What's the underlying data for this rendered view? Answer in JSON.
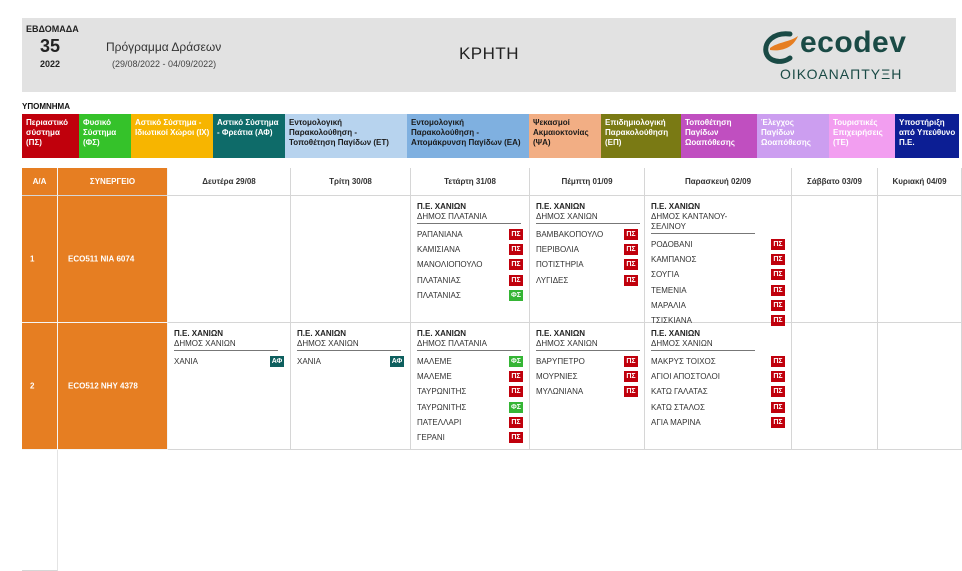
{
  "header": {
    "week_label": "ΕΒΔΟΜΑΔΑ",
    "week_number": "35",
    "year": "2022",
    "program_title": "Πρόγραμμα Δράσεων",
    "program_dates": "(29/08/2022 - 04/09/2022)",
    "region": "ΚΡΗΤΗ",
    "logo_word": "ecodev",
    "logo_sub": "ΟΙΚΟΑΝΑΠΤΥΞΗ"
  },
  "legend": {
    "title": "ΥΠΟΜΝΗΜΑ",
    "items": [
      {
        "label": "Περιαστικό σύστημα (ΠΣ)",
        "color": "#c0000c"
      },
      {
        "label": "Φυσικό Σύστημα (ΦΣ)",
        "color": "#35c22a"
      },
      {
        "label": "Αστικό Σύστημα - Ιδιωτικοί Χώροι (ΙΧ)",
        "color": "#f7b500"
      },
      {
        "label": "Αστικό Σύστημα - Φρεάτια (ΑΦ)",
        "color": "#0e6b69"
      },
      {
        "label": "Εντομολογική Παρακολούθηση - Τοποθέτηση Παγίδων (ΕΤ)",
        "color": "#b7d3ee"
      },
      {
        "label": "Εντομολογική Παρακολούθηση - Απομάκρυνση Παγίδων (ΕΑ)",
        "color": "#7fb0e0"
      },
      {
        "label": "Ψεκασμοί Ακμαιοκτονίας (ΨΑ)",
        "color": "#f2ae84"
      },
      {
        "label": "Επιδημιολογική Παρακολούθηση (ΕΠ)",
        "color": "#7a7a14"
      },
      {
        "label": "Τοποθέτηση Παγίδων Ωοαπόθεσης",
        "color": "#c04fc0"
      },
      {
        "label": "Έλεγχος Παγίδων Ωοαπόθεσης",
        "color": "#cc9ef0"
      },
      {
        "label": "Τουριστικές Επιχειρήσεις (ΤΕ)",
        "color": "#f29ef0"
      },
      {
        "label": "Υποστήριξη από Υπεύθυνο Π.Ε.",
        "color": "#0c1e94"
      }
    ]
  },
  "table": {
    "col_aa": "Α/Α",
    "col_team": "ΣΥΝΕΡΓΕΙΟ",
    "days": [
      "Δευτέρα 29/08",
      "Τρίτη 30/08",
      "Τετάρτη 31/08",
      "Πέμπτη 01/09",
      "Παρασκευή 02/09",
      "Σάββατο 03/09",
      "Κυριακή 04/09"
    ],
    "teams": [
      {
        "num": "1",
        "name": "ECO511  ΝΙΑ 6074",
        "blocks": [
          null,
          null,
          {
            "pe": "Π.Ε. ΧΑΝΙΩΝ",
            "dimos": "ΔΗΜΟΣ ΠΛΑΤΑΝΙΑ",
            "rows": [
              {
                "loc": "ΡΑΠΑΝΙΑΝΑ",
                "code": "ΠΣ",
                "type": "ps"
              },
              {
                "loc": "ΚΑΜΙΣΙΑΝΑ",
                "code": "ΠΣ",
                "type": "ps"
              },
              {
                "loc": "ΜΑΝΟΛΙΟΠΟΥΛΟ",
                "code": "ΠΣ",
                "type": "ps"
              },
              {
                "loc": "ΠΛΑΤΑΝΙΑΣ",
                "code": "ΠΣ",
                "type": "ps"
              },
              {
                "loc": "ΠΛΑΤΑΝΙΑΣ",
                "code": "ΦΣ",
                "type": "fs"
              }
            ]
          },
          {
            "pe": "Π.Ε. ΧΑΝΙΩΝ",
            "dimos": "ΔΗΜΟΣ ΧΑΝΙΩΝ",
            "rows": [
              {
                "loc": "ΒΑΜΒΑΚΟΠΟΥΛΟ",
                "code": "ΠΣ",
                "type": "ps"
              },
              {
                "loc": "ΠΕΡΙΒΟΛΙΑ",
                "code": "ΠΣ",
                "type": "ps"
              },
              {
                "loc": "ΠΟΤΙΣΤΗΡΙΑ",
                "code": "ΠΣ",
                "type": "ps"
              },
              {
                "loc": "ΛΥΓΙΔΕΣ",
                "code": "ΠΣ",
                "type": "ps"
              }
            ]
          },
          {
            "pe": "Π.Ε. ΧΑΝΙΩΝ",
            "dimos": "ΔΗΜΟΣ ΚΑΝΤΑΝΟΥ-ΣΕΛΙΝΟΥ",
            "rows": [
              {
                "loc": "ΡΟΔΟΒΑΝΙ",
                "code": "ΠΣ",
                "type": "ps"
              },
              {
                "loc": "ΚΑΜΠΑΝΟΣ",
                "code": "ΠΣ",
                "type": "ps"
              },
              {
                "loc": "ΣΟΥΓΙΑ",
                "code": "ΠΣ",
                "type": "ps"
              },
              {
                "loc": "ΤΕΜΕΝΙΑ",
                "code": "ΠΣ",
                "type": "ps"
              },
              {
                "loc": "ΜΑΡΑΛΙΑ",
                "code": "ΠΣ",
                "type": "ps"
              },
              {
                "loc": "ΤΣΙΣΚΙΑΝΑ",
                "code": "ΠΣ",
                "type": "ps"
              }
            ]
          },
          null,
          null
        ]
      },
      {
        "num": "2",
        "name": "ECO512  ΝΗΥ 4378",
        "blocks": [
          {
            "pe": "Π.Ε. ΧΑΝΙΩΝ",
            "dimos": "ΔΗΜΟΣ ΧΑΝΙΩΝ",
            "rows": [
              {
                "loc": "ΧΑΝΙΑ",
                "code": "ΑΦ",
                "type": "af"
              }
            ]
          },
          {
            "pe": "Π.Ε. ΧΑΝΙΩΝ",
            "dimos": "ΔΗΜΟΣ ΧΑΝΙΩΝ",
            "rows": [
              {
                "loc": "ΧΑΝΙΑ",
                "code": "ΑΦ",
                "type": "af"
              }
            ]
          },
          {
            "pe": "Π.Ε. ΧΑΝΙΩΝ",
            "dimos": "ΔΗΜΟΣ ΠΛΑΤΑΝΙΑ",
            "rows": [
              {
                "loc": "ΜΑΛΕΜΕ",
                "code": "ΦΣ",
                "type": "fs"
              },
              {
                "loc": "ΜΑΛΕΜΕ",
                "code": "ΠΣ",
                "type": "ps"
              },
              {
                "loc": "ΤΑΥΡΩΝΙΤΗΣ",
                "code": "ΠΣ",
                "type": "ps"
              },
              {
                "loc": "ΤΑΥΡΩΝΙΤΗΣ",
                "code": "ΦΣ",
                "type": "fs"
              },
              {
                "loc": "ΠΑΤΕΛΛΑΡΙ",
                "code": "ΠΣ",
                "type": "ps"
              },
              {
                "loc": "ΓΕΡΑΝΙ",
                "code": "ΠΣ",
                "type": "ps"
              }
            ]
          },
          {
            "pe": "Π.Ε. ΧΑΝΙΩΝ",
            "dimos": "ΔΗΜΟΣ ΧΑΝΙΩΝ",
            "rows": [
              {
                "loc": "ΒΑΡΥΠΕΤΡΟ",
                "code": "ΠΣ",
                "type": "ps"
              },
              {
                "loc": "ΜΟΥΡΝΙΕΣ",
                "code": "ΠΣ",
                "type": "ps"
              },
              {
                "loc": "ΜΥΛΩΝΙΑΝΑ",
                "code": "ΠΣ",
                "type": "ps"
              }
            ]
          },
          {
            "pe": "Π.Ε. ΧΑΝΙΩΝ",
            "dimos": "ΔΗΜΟΣ ΧΑΝΙΩΝ",
            "rows": [
              {
                "loc": "ΜΑΚΡΥΣ ΤΟΙΧΟΣ",
                "code": "ΠΣ",
                "type": "ps"
              },
              {
                "loc": "ΑΓΙΟΙ ΑΠΟΣΤΟΛΟΙ",
                "code": "ΠΣ",
                "type": "ps"
              },
              {
                "loc": "ΚΑΤΩ ΓΑΛΑΤΑΣ",
                "code": "ΠΣ",
                "type": "ps"
              },
              {
                "loc": "ΚΑΤΩ ΣΤΑΛΟΣ",
                "code": "ΠΣ",
                "type": "ps"
              },
              {
                "loc": "ΑΓΙΑ ΜΑΡΙΝΑ",
                "code": "ΠΣ",
                "type": "ps"
              }
            ]
          },
          null,
          null
        ]
      }
    ]
  }
}
